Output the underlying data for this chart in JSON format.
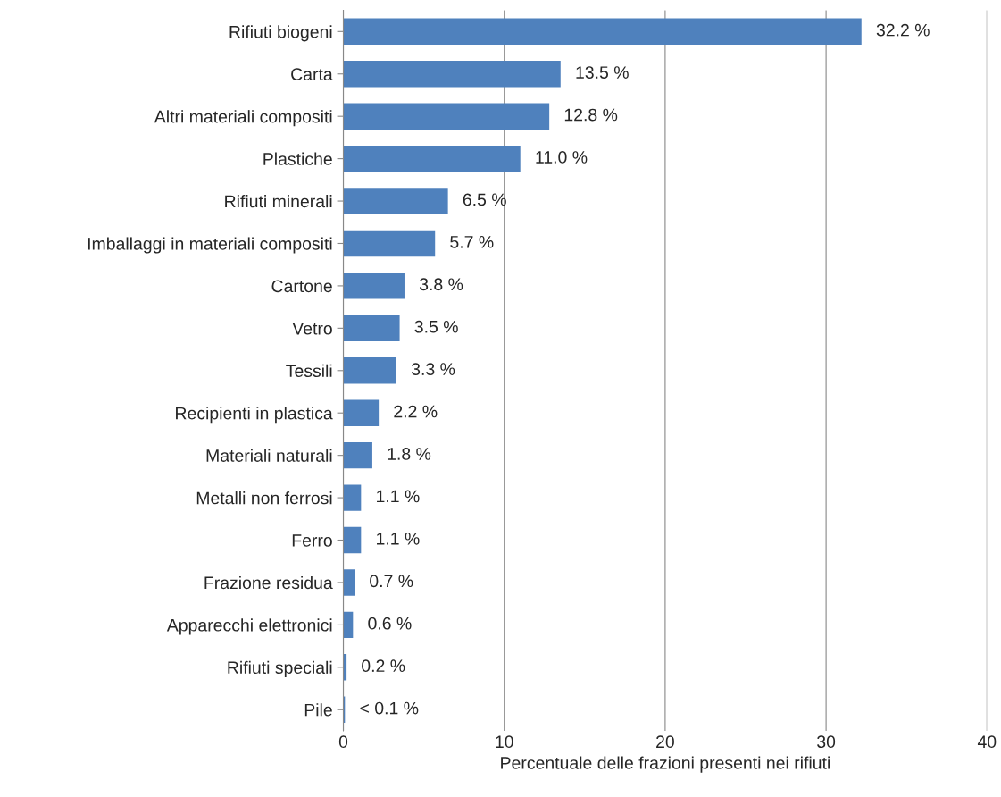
{
  "chart_data": {
    "type": "bar",
    "orientation": "horizontal",
    "xlabel": "Percentuale delle frazioni presenti nei rifiuti",
    "categories": [
      "Rifiuti biogeni",
      "Carta",
      "Altri materiali compositi",
      "Plastiche",
      "Rifiuti minerali",
      "Imballaggi in materiali compositi",
      "Cartone",
      "Vetro",
      "Tessili",
      "Recipienti in plastica",
      "Materiali naturali",
      "Metalli non ferrosi",
      "Ferro",
      "Frazione residua",
      "Apparecchi elettronici",
      "Rifiuti speciali",
      "Pile"
    ],
    "values": [
      32.2,
      13.5,
      12.8,
      11.0,
      6.5,
      5.7,
      3.8,
      3.5,
      3.3,
      2.2,
      1.8,
      1.1,
      1.1,
      0.7,
      0.6,
      0.2,
      0.1
    ],
    "value_labels": [
      "32.2 %",
      "13.5 %",
      "12.8 %",
      "11.0 %",
      "6.5 %",
      "5.7 %",
      "3.8 %",
      "3.5 %",
      "3.3 %",
      "2.2 %",
      "1.8 %",
      "1.1 %",
      "1.1 %",
      "0.7 %",
      "0.6 %",
      "0.2 %",
      "< 0.1 %"
    ],
    "color": "#4f81bd",
    "xlim": [
      0,
      40
    ],
    "xticks": [
      0,
      10,
      20,
      30,
      40
    ],
    "grid": "x"
  }
}
